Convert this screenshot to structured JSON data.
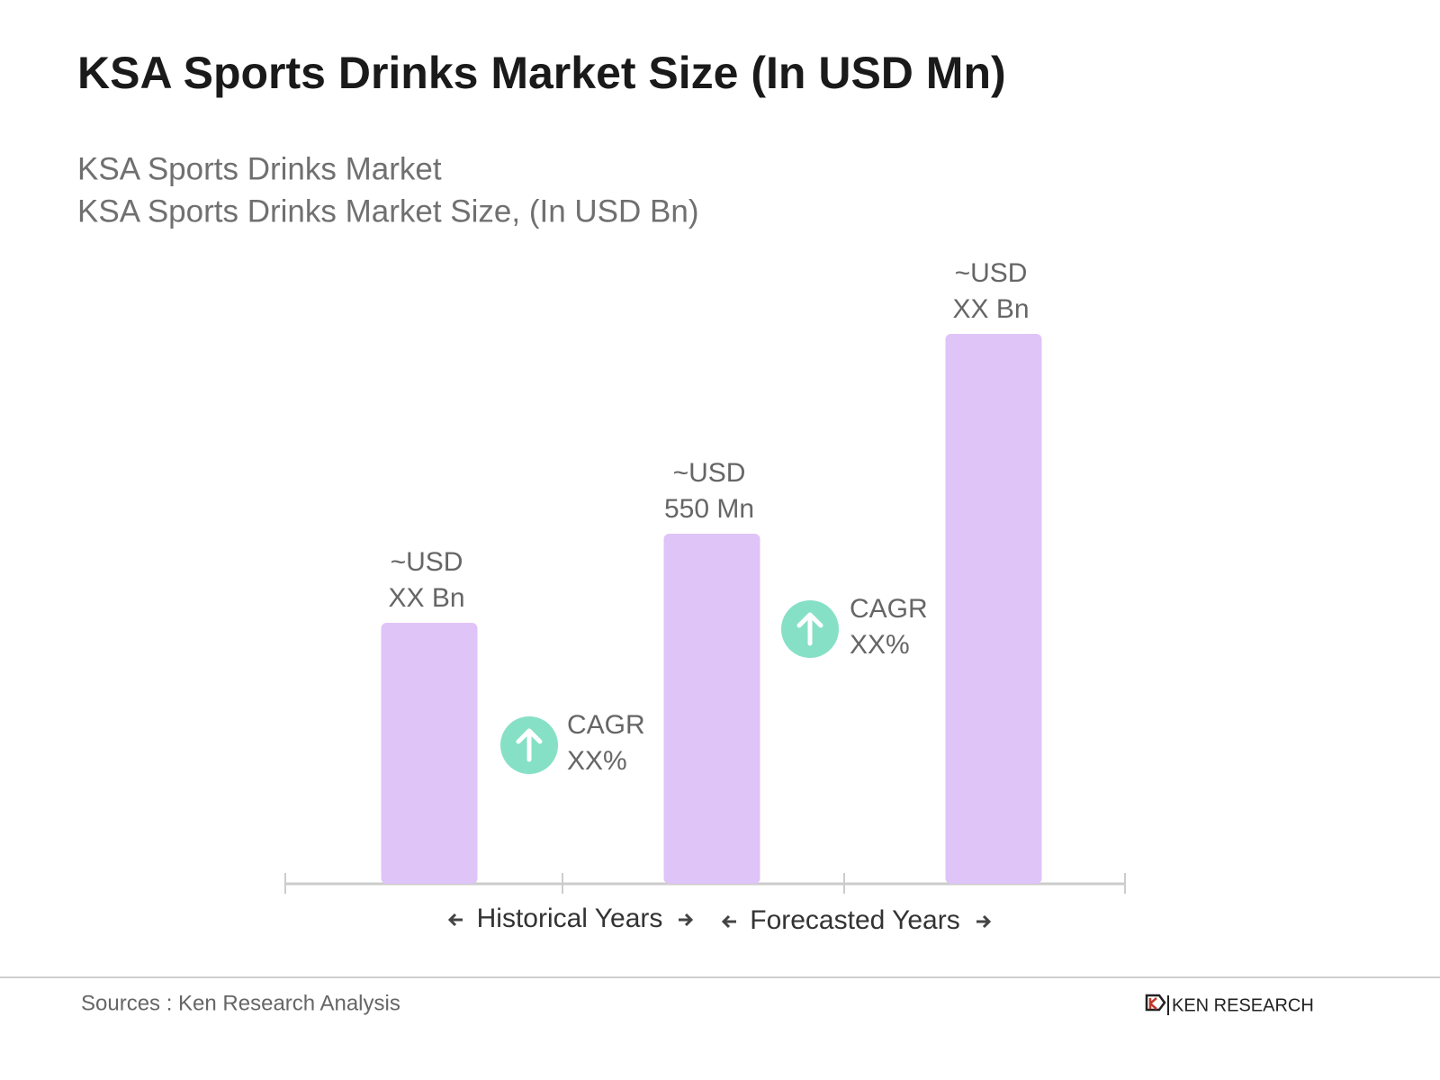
{
  "chart_data": {
    "type": "bar",
    "title": "KSA Sports Drinks Market Size (In USD Mn)",
    "subtitle": [
      "KSA Sports Drinks Market",
      "KSA Sports Drinks Market Size, (In USD Bn)"
    ],
    "categories": [
      null,
      null,
      null
    ],
    "values": [
      410,
      550,
      864
    ],
    "value_labels": [
      [
        "~USD",
        "XX Bn"
      ],
      [
        "~USD",
        "550 Mn"
      ],
      [
        "~USD",
        "XX Bn"
      ]
    ],
    "color": "#dfc4f7",
    "annotations": [
      [
        "CAGR",
        "XX%"
      ],
      [
        "CAGR",
        "XX%"
      ]
    ],
    "annotation_color": "#86e0c6",
    "periods": [
      "Historical Years",
      "Forecasted Years"
    ],
    "source": "Sources : Ken Research Analysis",
    "brand": "KEN RESEARCH"
  }
}
